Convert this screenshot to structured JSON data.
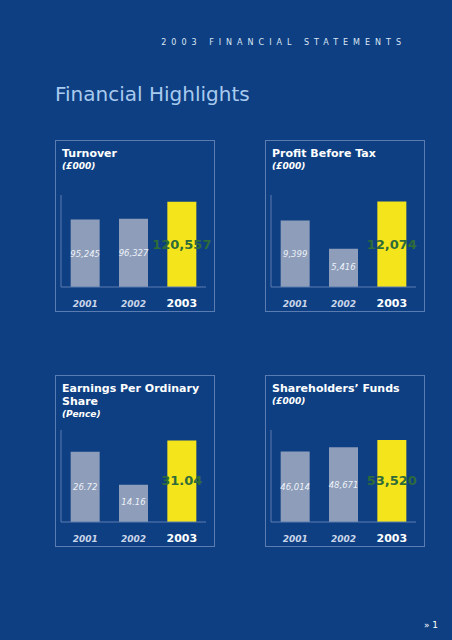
{
  "header": "2003 FINANCIAL STATEMENTS",
  "title": "Financial Highlights",
  "page": "» 1",
  "chart_data": [
    {
      "type": "bar",
      "title": "Turnover",
      "subtitle": "(£000)",
      "categories": [
        "2001",
        "2002",
        "2003"
      ],
      "values": [
        95245,
        96327,
        120557
      ],
      "value_labels": [
        "95,245",
        "96,327",
        "120,557"
      ],
      "colors": [
        "#8d9dba",
        "#8d9dba",
        "#f4e41c"
      ],
      "ylim": [
        0,
        130000
      ],
      "data_labels": true,
      "tick_labels": "x"
    },
    {
      "type": "bar",
      "title": "Profit Before Tax",
      "subtitle": "(£000)",
      "categories": [
        "2001",
        "2002",
        "2003"
      ],
      "values": [
        9399,
        5416,
        12074
      ],
      "value_labels": [
        "9,399",
        "5,416",
        "12,074"
      ],
      "colors": [
        "#8d9dba",
        "#8d9dba",
        "#f4e41c"
      ],
      "ylim": [
        0,
        13000
      ],
      "data_labels": true,
      "tick_labels": "x"
    },
    {
      "type": "bar",
      "title": "Earnings Per Ordinary Share",
      "subtitle": "(Pence)",
      "categories": [
        "2001",
        "2002",
        "2003"
      ],
      "values": [
        26.72,
        14.16,
        31.04
      ],
      "colors": [
        "#8d9dba",
        "#8d9dba",
        "#f4e41c"
      ],
      "ylim": [
        0,
        35
      ],
      "data_labels": true,
      "tick_labels": "x"
    },
    {
      "type": "bar",
      "title": "Shareholders’ Funds",
      "subtitle": "(£000)",
      "categories": [
        "2001",
        "2002",
        "2003"
      ],
      "values": [
        46014,
        48671,
        53520
      ],
      "value_labels": [
        "46,014",
        "48,671",
        "53,520"
      ],
      "colors": [
        "#8d9dba",
        "#8d9dba",
        "#f4e41c"
      ],
      "ylim": [
        0,
        60000
      ],
      "data_labels": true,
      "tick_labels": "x"
    }
  ]
}
